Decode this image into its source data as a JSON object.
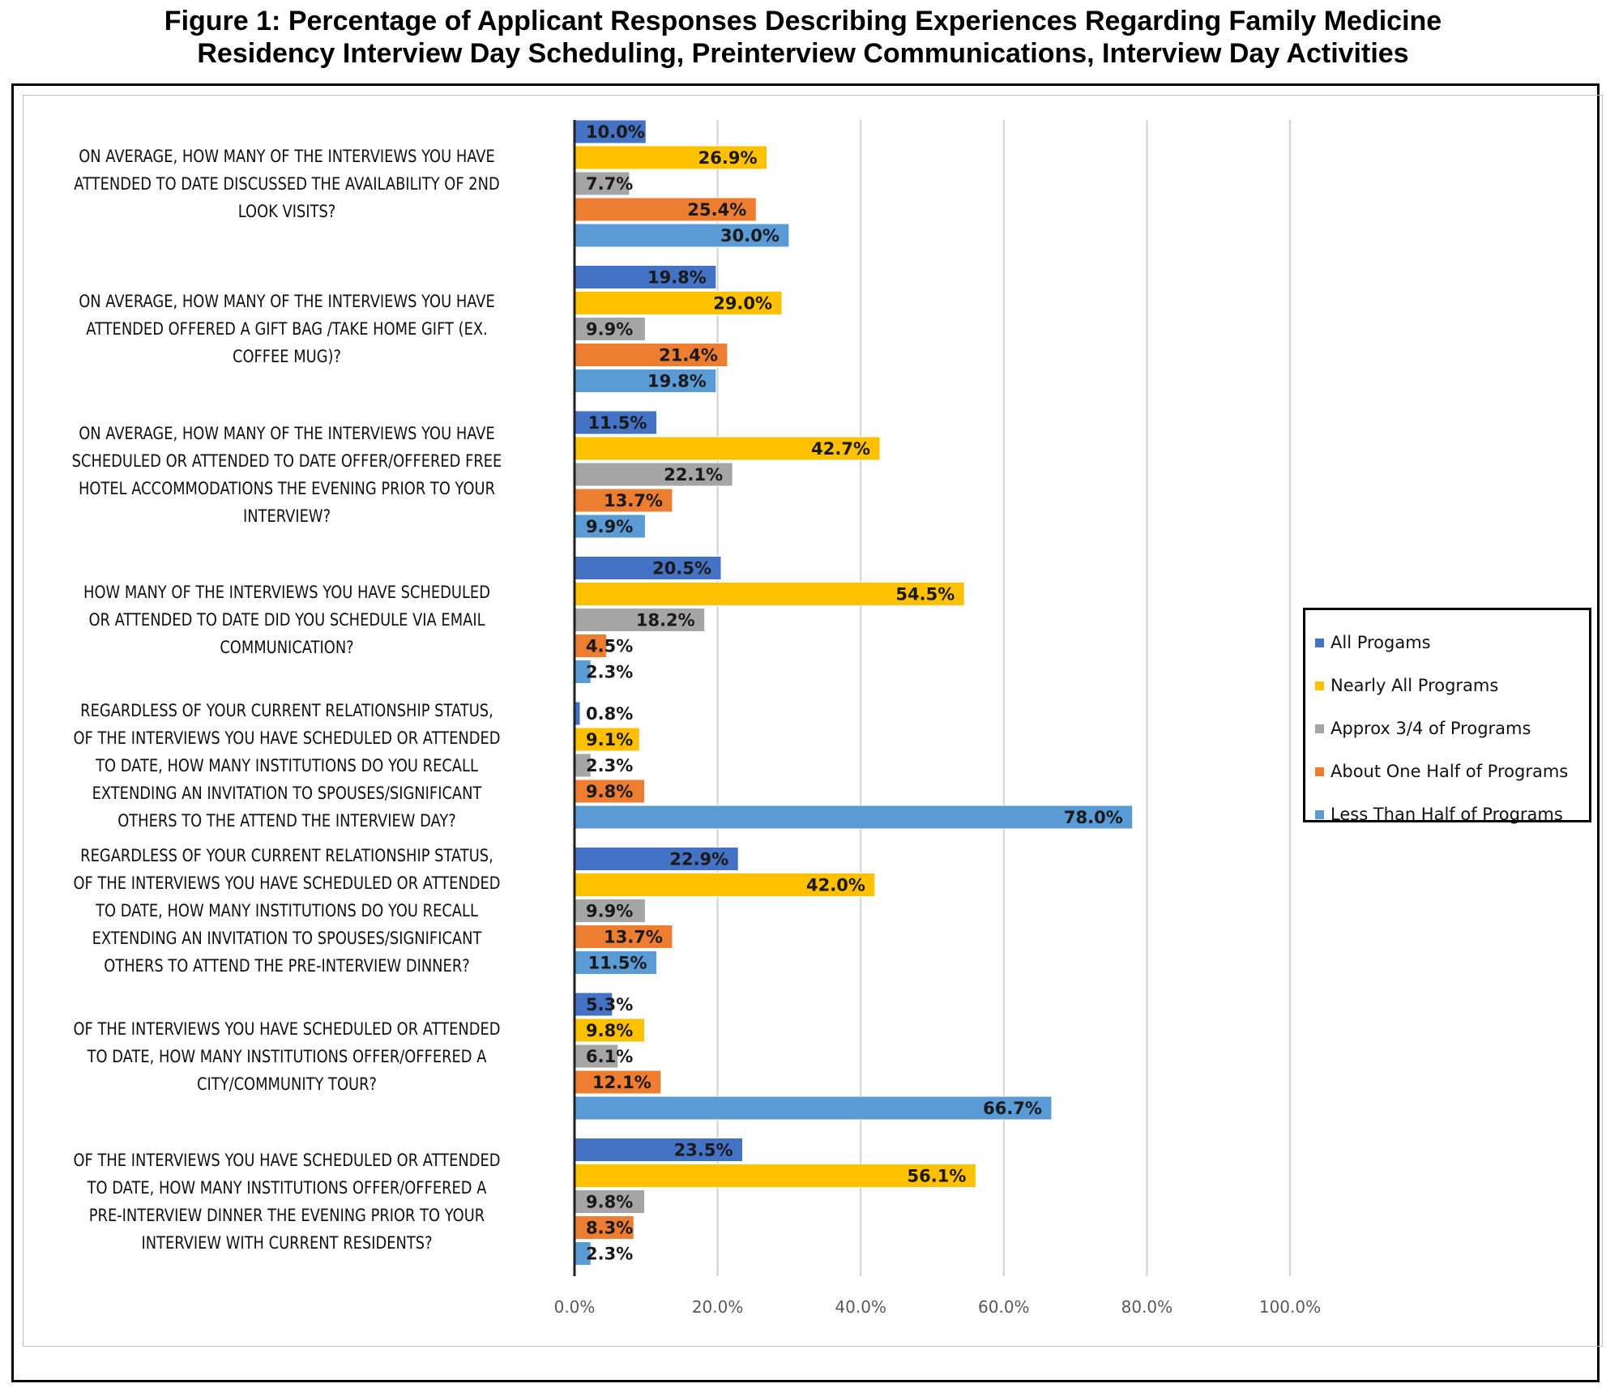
{
  "title_lines": [
    "Figure 1: Percentage of Applicant Responses Describing Experiences Regarding Family Medicine",
    "Residency Interview Day Scheduling, Preinterview Communications, Interview Day Activities"
  ],
  "colors": {
    "All Progams": "#4472c4",
    "Nearly All Programs": "#ffc000",
    "Approx 3/4 of Programs": "#a5a5a5",
    "About One Half of Programs": "#ed7d31",
    "Less Than Half of Programs": "#5b9bd5"
  },
  "chart_data": {
    "type": "bar",
    "orientation": "horizontal",
    "title": "Figure 1: Percentage of Applicant Responses Describing Experiences Regarding Family Medicine Residency Interview Day Scheduling, Preinterview Communications, Interview Day Activities",
    "xlabel": "",
    "ylabel": "",
    "xlim": [
      0,
      100
    ],
    "x_ticks": [
      "0.0%",
      "20.0%",
      "40.0%",
      "60.0%",
      "80.0%",
      "100.0%"
    ],
    "grid": "vertical gridlines",
    "legend_position": "right",
    "categories": [
      "ON AVERAGE, HOW MANY OF THE INTERVIEWS YOU HAVE ATTENDED TO DATE DISCUSSED THE AVAILABILITY OF 2ND LOOK VISITS?",
      "ON AVERAGE, HOW MANY OF THE INTERVIEWS YOU HAVE ATTENDED OFFERED A GIFT BAG /TAKE HOME GIFT (EX. COFFEE MUG)?",
      "ON AVERAGE, HOW MANY OF THE INTERVIEWS YOU HAVE SCHEDULED OR ATTENDED TO DATE OFFER/OFFERED FREE HOTEL ACCOMMODATIONS THE EVENING PRIOR TO YOUR INTERVIEW?",
      "HOW MANY OF THE INTERVIEWS YOU HAVE SCHEDULED OR ATTENDED TO DATE DID YOU SCHEDULE VIA EMAIL COMMUNICATION?",
      "REGARDLESS OF YOUR CURRENT RELATIONSHIP STATUS, OF THE INTERVIEWS YOU HAVE SCHEDULED OR ATTENDED TO DATE, HOW MANY INSTITUTIONS DO YOU RECALL EXTENDING AN INVITATION TO SPOUSES/SIGNIFICANT OTHERS TO THE ATTEND THE INTERVIEW DAY?",
      "REGARDLESS OF YOUR CURRENT RELATIONSHIP STATUS, OF THE INTERVIEWS YOU HAVE SCHEDULED OR ATTENDED TO DATE, HOW MANY INSTITUTIONS DO YOU RECALL EXTENDING AN INVITATION TO SPOUSES/SIGNIFICANT OTHERS TO ATTEND THE PRE-INTERVIEW DINNER?",
      "OF THE INTERVIEWS YOU HAVE SCHEDULED OR ATTENDED TO DATE, HOW MANY INSTITUTIONS OFFER/OFFERED A CITY/COMMUNITY TOUR?",
      "OF THE INTERVIEWS YOU HAVE SCHEDULED OR ATTENDED TO DATE, HOW MANY INSTITUTIONS OFFER/OFFERED A PRE-INTERVIEW DINNER THE EVENING PRIOR TO YOUR INTERVIEW WITH CURRENT RESIDENTS?"
    ],
    "category_label_lines": [
      [
        "ON AVERAGE, HOW MANY OF THE INTERVIEWS YOU HAVE",
        "ATTENDED TO DATE DISCUSSED THE AVAILABILITY OF 2ND",
        "LOOK VISITS?"
      ],
      [
        "ON AVERAGE, HOW MANY OF THE INTERVIEWS YOU HAVE",
        "ATTENDED OFFERED A GIFT BAG /TAKE HOME GIFT (EX.",
        "COFFEE MUG)?"
      ],
      [
        "ON AVERAGE, HOW MANY OF THE INTERVIEWS YOU HAVE",
        "SCHEDULED OR ATTENDED TO DATE OFFER/OFFERED FREE",
        "HOTEL ACCOMMODATIONS THE EVENING PRIOR TO YOUR",
        "INTERVIEW?"
      ],
      [
        "HOW MANY OF THE INTERVIEWS YOU HAVE SCHEDULED",
        "OR ATTENDED TO DATE DID YOU SCHEDULE VIA EMAIL",
        "COMMUNICATION?"
      ],
      [
        "REGARDLESS OF YOUR CURRENT RELATIONSHIP STATUS,",
        "OF THE INTERVIEWS YOU HAVE SCHEDULED OR ATTENDED",
        "TO DATE, HOW MANY INSTITUTIONS DO YOU RECALL",
        "EXTENDING AN INVITATION TO SPOUSES/SIGNIFICANT",
        "OTHERS TO THE ATTEND THE INTERVIEW DAY?"
      ],
      [
        "REGARDLESS OF YOUR CURRENT RELATIONSHIP STATUS,",
        "OF THE INTERVIEWS YOU HAVE SCHEDULED OR ATTENDED",
        "TO DATE, HOW MANY INSTITUTIONS DO YOU RECALL",
        "EXTENDING AN INVITATION TO SPOUSES/SIGNIFICANT",
        "OTHERS TO ATTEND THE PRE-INTERVIEW DINNER?"
      ],
      [
        "OF THE INTERVIEWS YOU HAVE SCHEDULED OR ATTENDED",
        "TO DATE, HOW MANY INSTITUTIONS OFFER/OFFERED A",
        "CITY/COMMUNITY TOUR?"
      ],
      [
        "OF THE INTERVIEWS YOU HAVE SCHEDULED OR ATTENDED",
        "TO DATE, HOW MANY INSTITUTIONS OFFER/OFFERED A",
        "PRE-INTERVIEW DINNER THE EVENING PRIOR TO YOUR",
        "INTERVIEW WITH CURRENT RESIDENTS?"
      ]
    ],
    "series": [
      {
        "name": "All Progams",
        "values": [
          10.0,
          19.8,
          11.5,
          20.5,
          0.8,
          22.9,
          5.3,
          23.5
        ],
        "labels": [
          "10.0%",
          "19.8%",
          "11.5%",
          "20.5%",
          "0.8%",
          "22.9%",
          "5.3%",
          "23.5%"
        ]
      },
      {
        "name": "Nearly All Programs",
        "values": [
          26.9,
          29.0,
          42.7,
          54.5,
          9.1,
          42.0,
          9.8,
          56.1
        ],
        "labels": [
          "26.9%",
          "29.0%",
          "42.7%",
          "54.5%",
          "9.1%",
          "42.0%",
          "9.8%",
          "56.1%"
        ]
      },
      {
        "name": "Approx 3/4 of Programs",
        "values": [
          7.7,
          9.9,
          22.1,
          18.2,
          2.3,
          9.9,
          6.1,
          9.8
        ],
        "labels": [
          "7.7%",
          "9.9%",
          "22.1%",
          "18.2%",
          "2.3%",
          "9.9%",
          "6.1%",
          "9.8%"
        ]
      },
      {
        "name": "About One Half of Programs",
        "values": [
          25.4,
          21.4,
          13.7,
          4.5,
          9.8,
          13.7,
          12.1,
          8.3
        ],
        "labels": [
          "25.4%",
          "21.4%",
          "13.7%",
          "4.5%",
          "9.8%",
          "13.7%",
          "12.1%",
          "8.3%"
        ]
      },
      {
        "name": "Less Than Half of Programs",
        "values": [
          30.0,
          19.8,
          9.9,
          2.3,
          78.0,
          11.5,
          66.7,
          2.3
        ],
        "labels": [
          "30.0%",
          "19.8%",
          "9.9%",
          "2.3%",
          "78.0%",
          "11.5%",
          "66.7%",
          "2.3%"
        ]
      }
    ]
  }
}
